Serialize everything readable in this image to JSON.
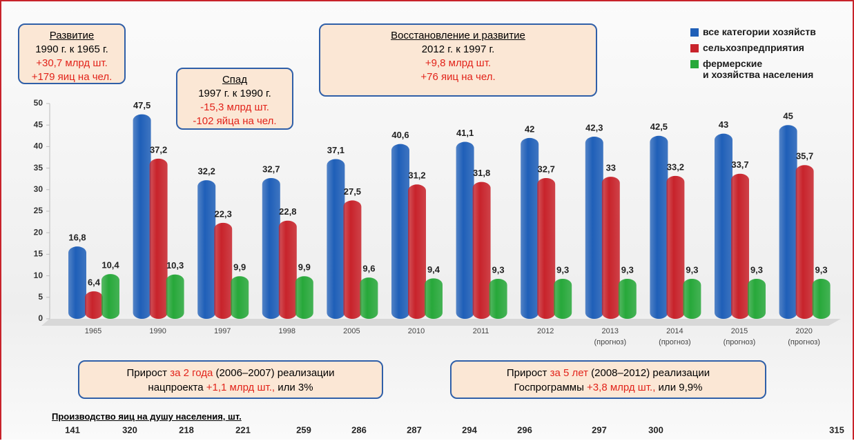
{
  "chart_data": {
    "type": "bar",
    "categories": [
      "1965",
      "1990",
      "1997",
      "1998",
      "2005",
      "2010",
      "2011",
      "2012",
      "2013",
      "2014",
      "2015",
      "2020"
    ],
    "sublabels": [
      null,
      null,
      null,
      null,
      null,
      null,
      null,
      null,
      "(прогноз)",
      "(прогноз)",
      "(прогноз)",
      "(прогноз)"
    ],
    "series": [
      {
        "name": "все категории хозяйств",
        "color": "#1f5fb8",
        "values": [
          16.8,
          47.5,
          32.2,
          32.7,
          37.1,
          40.6,
          41.1,
          42,
          42.3,
          42.5,
          43,
          45
        ],
        "value_labels": [
          "16,8",
          "47,5",
          "32,2",
          "32,7",
          "37,1",
          "40,6",
          "41,1",
          "42",
          "42,3",
          "42,5",
          "43",
          "45"
        ]
      },
      {
        "name": "сельхозпредприятия",
        "color": "#c8232b",
        "values": [
          6.4,
          37.2,
          22.3,
          22.8,
          27.5,
          31.2,
          31.8,
          32.7,
          33,
          33.2,
          33.7,
          35.7
        ],
        "value_labels": [
          "6,4",
          "37,2",
          "22,3",
          "22,8",
          "27,5",
          "31,2",
          "31,8",
          "32,7",
          "33",
          "33,2",
          "33,7",
          "35,7"
        ]
      },
      {
        "name": "фермерские\nи хозяйства населения",
        "color": "#27a83a",
        "values": [
          10.4,
          10.3,
          9.9,
          9.9,
          9.6,
          9.4,
          9.3,
          9.3,
          9.3,
          9.3,
          9.3,
          9.3
        ],
        "value_labels": [
          "10,4",
          "10,3",
          "9,9",
          "9,9",
          "9,6",
          "9,4",
          "9,3",
          "9,3",
          "9,3",
          "9,3",
          "9,3",
          "9,3"
        ]
      }
    ],
    "ylim": [
      0,
      50
    ],
    "yticks": [
      0,
      5,
      10,
      15,
      20,
      25,
      30,
      35,
      40,
      45,
      50
    ],
    "grid": false,
    "legend": "top-right",
    "annotations": [
      {
        "title": "Развитие",
        "lines": [
          "1990 г. к 1965 г.",
          "+30,7 млрд шт.",
          "+179 яиц на чел."
        ]
      },
      {
        "title": "Спад",
        "lines": [
          "1997 г. к 1990 г.",
          "-15,3 млрд шт.",
          "-102 яйца на чел."
        ]
      },
      {
        "title": "Восстановление и развитие",
        "lines": [
          "2012 г. к 1997 г.",
          "+9,8 млрд шт.",
          "+76 яиц на чел."
        ]
      }
    ],
    "notes": [
      {
        "lines": [
          [
            {
              "text": "Прирост "
            },
            {
              "text": "за 2 года",
              "color": "#e2231a"
            },
            {
              "text": " (2006–2007) реализации"
            }
          ],
          [
            {
              "text": "нацпроекта "
            },
            {
              "text": "+1,1 млрд шт.,",
              "color": "#e2231a"
            },
            {
              "text": " или 3%"
            }
          ]
        ]
      },
      {
        "lines": [
          [
            {
              "text": "Прирост "
            },
            {
              "text": "за 5 лет",
              "color": "#e2231a"
            },
            {
              "text": " (2008–2012) реализации"
            }
          ],
          [
            {
              "text": "Госпрограммы "
            },
            {
              "text": "+3,8 млрд шт.,",
              "color": "#e2231a"
            },
            {
              "text": " или 9,9%"
            }
          ]
        ]
      }
    ],
    "per_capita": {
      "label": "Производство яиц на душу населения, шт.",
      "values": [
        141,
        320,
        218,
        221,
        259,
        286,
        287,
        294,
        296,
        297,
        300,
        315
      ]
    }
  }
}
